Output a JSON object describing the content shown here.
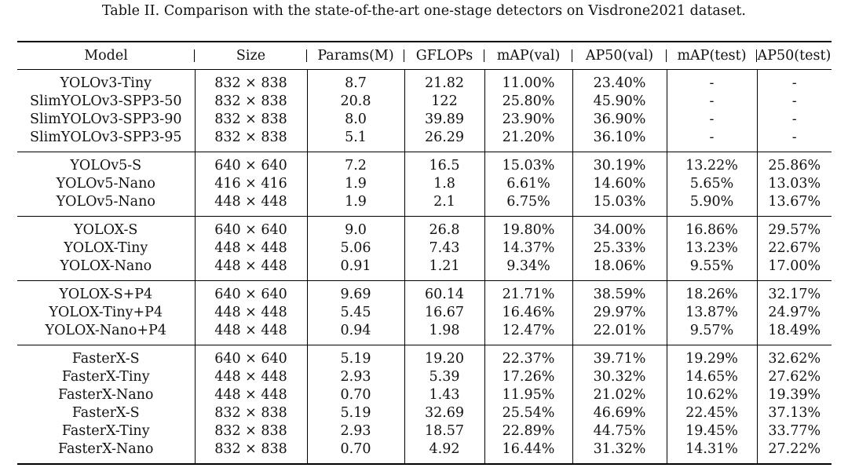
{
  "caption": "Table II. Comparison with the state-of-the-art one-stage detectors on Visdrone2021 dataset.",
  "columns": [
    "Model",
    "Size",
    "Params(M)",
    "GFLOPs",
    "mAP(val)",
    "AP50(val)",
    "mAP(test)",
    "AP50(test)"
  ],
  "groups": [
    {
      "rows": [
        [
          "YOLOv3-Tiny",
          "832 × 838",
          "8.7",
          "21.82",
          "11.00%",
          "23.40%",
          "-",
          "-"
        ],
        [
          "SlimYOLOv3-SPP3-50",
          "832 × 838",
          "20.8",
          "122",
          "25.80%",
          "45.90%",
          "-",
          "-"
        ],
        [
          "SlimYOLOv3-SPP3-90",
          "832 × 838",
          "8.0",
          "39.89",
          "23.90%",
          "36.90%",
          "-",
          "-"
        ],
        [
          "SlimYOLOv3-SPP3-95",
          "832 × 838",
          "5.1",
          "26.29",
          "21.20%",
          "36.10%",
          "-",
          "-"
        ]
      ]
    },
    {
      "rows": [
        [
          "YOLOv5-S",
          "640 × 640",
          "7.2",
          "16.5",
          "15.03%",
          "30.19%",
          "13.22%",
          "25.86%"
        ],
        [
          "YOLOv5-Nano",
          "416 × 416",
          "1.9",
          "1.8",
          "6.61%",
          "14.60%",
          "5.65%",
          "13.03%"
        ],
        [
          "YOLOv5-Nano",
          "448 × 448",
          "1.9",
          "2.1",
          "6.75%",
          "15.03%",
          "5.90%",
          "13.67%"
        ]
      ]
    },
    {
      "rows": [
        [
          "YOLOX-S",
          "640 × 640",
          "9.0",
          "26.8",
          "19.80%",
          "34.00%",
          "16.86%",
          "29.57%"
        ],
        [
          "YOLOX-Tiny",
          "448 × 448",
          "5.06",
          "7.43",
          "14.37%",
          "25.33%",
          "13.23%",
          "22.67%"
        ],
        [
          "YOLOX-Nano",
          "448 × 448",
          "0.91",
          "1.21",
          "9.34%",
          "18.06%",
          "9.55%",
          "17.00%"
        ]
      ]
    },
    {
      "rows": [
        [
          "YOLOX-S+P4",
          "640 × 640",
          "9.69",
          "60.14",
          "21.71%",
          "38.59%",
          "18.26%",
          "32.17%"
        ],
        [
          "YOLOX-Tiny+P4",
          "448 × 448",
          "5.45",
          "16.67",
          "16.46%",
          "29.97%",
          "13.87%",
          "24.97%"
        ],
        [
          "YOLOX-Nano+P4",
          "448 × 448",
          "0.94",
          "1.98",
          "12.47%",
          "22.01%",
          "9.57%",
          "18.49%"
        ]
      ]
    },
    {
      "rows": [
        [
          "FasterX-S",
          "640 × 640",
          "5.19",
          "19.20",
          "22.37%",
          "39.71%",
          "19.29%",
          "32.62%"
        ],
        [
          "FasterX-Tiny",
          "448 × 448",
          "2.93",
          "5.39",
          "17.26%",
          "30.32%",
          "14.65%",
          "27.62%"
        ],
        [
          "FasterX-Nano",
          "448 × 448",
          "0.70",
          "1.43",
          "11.95%",
          "21.02%",
          "10.62%",
          "19.39%"
        ],
        [
          "FasterX-S",
          "832 × 838",
          "5.19",
          "32.69",
          "25.54%",
          "46.69%",
          "22.45%",
          "37.13%"
        ],
        [
          "FasterX-Tiny",
          "832 × 838",
          "2.93",
          "18.57",
          "22.89%",
          "44.75%",
          "19.45%",
          "33.77%"
        ],
        [
          "FasterX-Nano",
          "832 × 838",
          "0.70",
          "4.92",
          "16.44%",
          "31.32%",
          "14.31%",
          "27.22%"
        ]
      ]
    }
  ]
}
